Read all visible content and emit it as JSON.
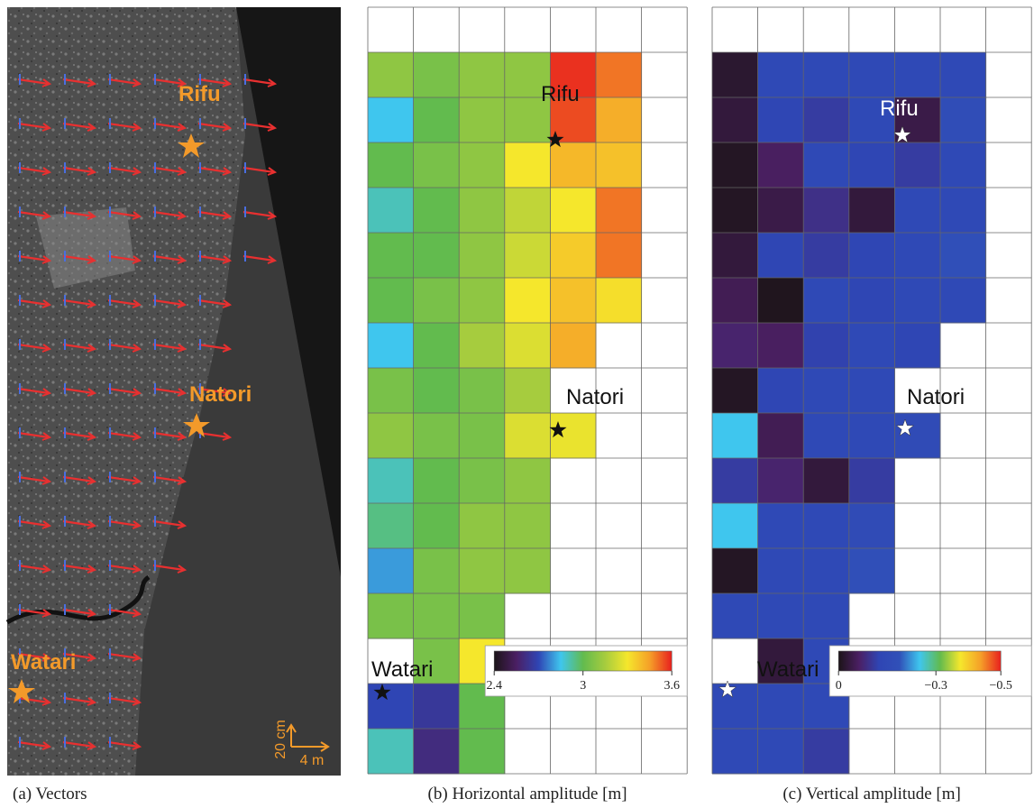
{
  "panel_a": {
    "caption": "(a) Vectors",
    "site_labels": [
      "Rifu",
      "Natori",
      "Watari"
    ],
    "scale_labels": [
      "20 cm",
      "4 m"
    ]
  },
  "chart_data": [
    {
      "type": "heatmap",
      "caption": "(b) Horizontal amplitude [m]",
      "site_labels": [
        "Rifu",
        "Natori",
        "Watari"
      ],
      "zlim": [
        2.4,
        3.6
      ],
      "zticks": [
        2.4,
        3,
        3.6
      ],
      "colors": [
        "#1c1418",
        "#4b1f63",
        "#2f45b4",
        "#3fc6ee",
        "#62bb4e",
        "#a6cc3e",
        "#f5e72c",
        "#f5a028",
        "#e8201e"
      ],
      "z": [
        [
          null,
          null,
          null,
          null,
          null,
          null,
          null
        ],
        [
          3.1,
          3.05,
          3.1,
          3.1,
          3.58,
          3.5,
          null
        ],
        [
          2.85,
          3.0,
          3.1,
          3.1,
          3.55,
          3.42,
          null
        ],
        [
          3.0,
          3.05,
          3.1,
          3.3,
          3.4,
          3.38,
          null
        ],
        [
          2.9,
          3.0,
          3.1,
          3.2,
          3.3,
          3.5,
          null
        ],
        [
          3.0,
          3.0,
          3.1,
          3.22,
          3.36,
          3.5,
          null
        ],
        [
          3.0,
          3.05,
          3.1,
          3.3,
          3.38,
          3.32,
          null
        ],
        [
          2.85,
          3.0,
          3.15,
          3.25,
          3.42,
          null,
          null
        ],
        [
          3.05,
          3.0,
          3.05,
          3.15,
          null,
          null,
          null
        ],
        [
          3.1,
          3.05,
          3.05,
          3.25,
          3.28,
          null,
          null
        ],
        [
          2.9,
          3.0,
          3.05,
          3.1,
          null,
          null,
          null
        ],
        [
          2.95,
          3.0,
          3.1,
          3.1,
          null,
          null,
          null
        ],
        [
          2.8,
          3.05,
          3.1,
          3.1,
          null,
          null,
          null
        ],
        [
          3.05,
          3.05,
          3.05,
          null,
          null,
          null,
          null
        ],
        [
          null,
          3.05,
          3.3,
          null,
          null,
          null,
          null
        ],
        [
          2.7,
          2.65,
          3.0,
          null,
          null,
          null,
          null
        ],
        [
          2.9,
          2.6,
          3.0,
          null,
          null,
          null,
          null
        ]
      ]
    },
    {
      "type": "heatmap",
      "caption": "(c) Vertical amplitude [m]",
      "site_labels": [
        "Rifu",
        "Natori",
        "Watari"
      ],
      "zlim": [
        0,
        -0.5
      ],
      "zticks": [
        0,
        {
          "value": -0.3,
          "label": "−0.3"
        },
        {
          "value": -0.5,
          "label": "−0.5"
        }
      ],
      "colors": [
        "#1c1418",
        "#4b1f63",
        "#2f45b4",
        "#3050b8",
        "#3fc6ee",
        "#62bb4e",
        "#f5e72c",
        "#f5a028",
        "#e8201e"
      ],
      "z": [
        [
          null,
          null,
          null,
          null,
          null,
          null,
          null
        ],
        [
          -0.02,
          -0.15,
          -0.15,
          -0.15,
          -0.15,
          -0.15,
          null
        ],
        [
          -0.03,
          -0.13,
          -0.11,
          -0.15,
          -0.04,
          -0.17,
          null
        ],
        [
          -0.01,
          -0.06,
          -0.15,
          -0.13,
          -0.11,
          -0.15,
          null
        ],
        [
          -0.01,
          -0.04,
          -0.09,
          -0.03,
          -0.15,
          -0.15,
          null
        ],
        [
          -0.03,
          -0.13,
          -0.11,
          -0.13,
          -0.15,
          -0.18,
          null
        ],
        [
          -0.05,
          -0.005,
          -0.15,
          -0.13,
          -0.15,
          -0.15,
          null
        ],
        [
          -0.07,
          -0.06,
          -0.12,
          -0.15,
          -0.13,
          null,
          null
        ],
        [
          -0.01,
          -0.13,
          -0.15,
          -0.15,
          null,
          null,
          null
        ],
        [
          -0.25,
          -0.05,
          -0.15,
          -0.15,
          -0.16,
          null,
          null
        ],
        [
          -0.11,
          -0.07,
          -0.03,
          -0.11,
          null,
          null,
          null
        ],
        [
          -0.25,
          -0.15,
          -0.15,
          -0.16,
          null,
          null,
          null
        ],
        [
          -0.01,
          -0.15,
          -0.15,
          -0.18,
          null,
          null,
          null
        ],
        [
          -0.15,
          -0.15,
          -0.15,
          null,
          null,
          null,
          null
        ],
        [
          null,
          -0.03,
          -0.15,
          null,
          null,
          null,
          null
        ],
        [
          -0.15,
          -0.15,
          -0.15,
          null,
          null,
          null,
          null
        ],
        [
          -0.15,
          -0.15,
          -0.11,
          null,
          null,
          null,
          null
        ]
      ]
    }
  ]
}
